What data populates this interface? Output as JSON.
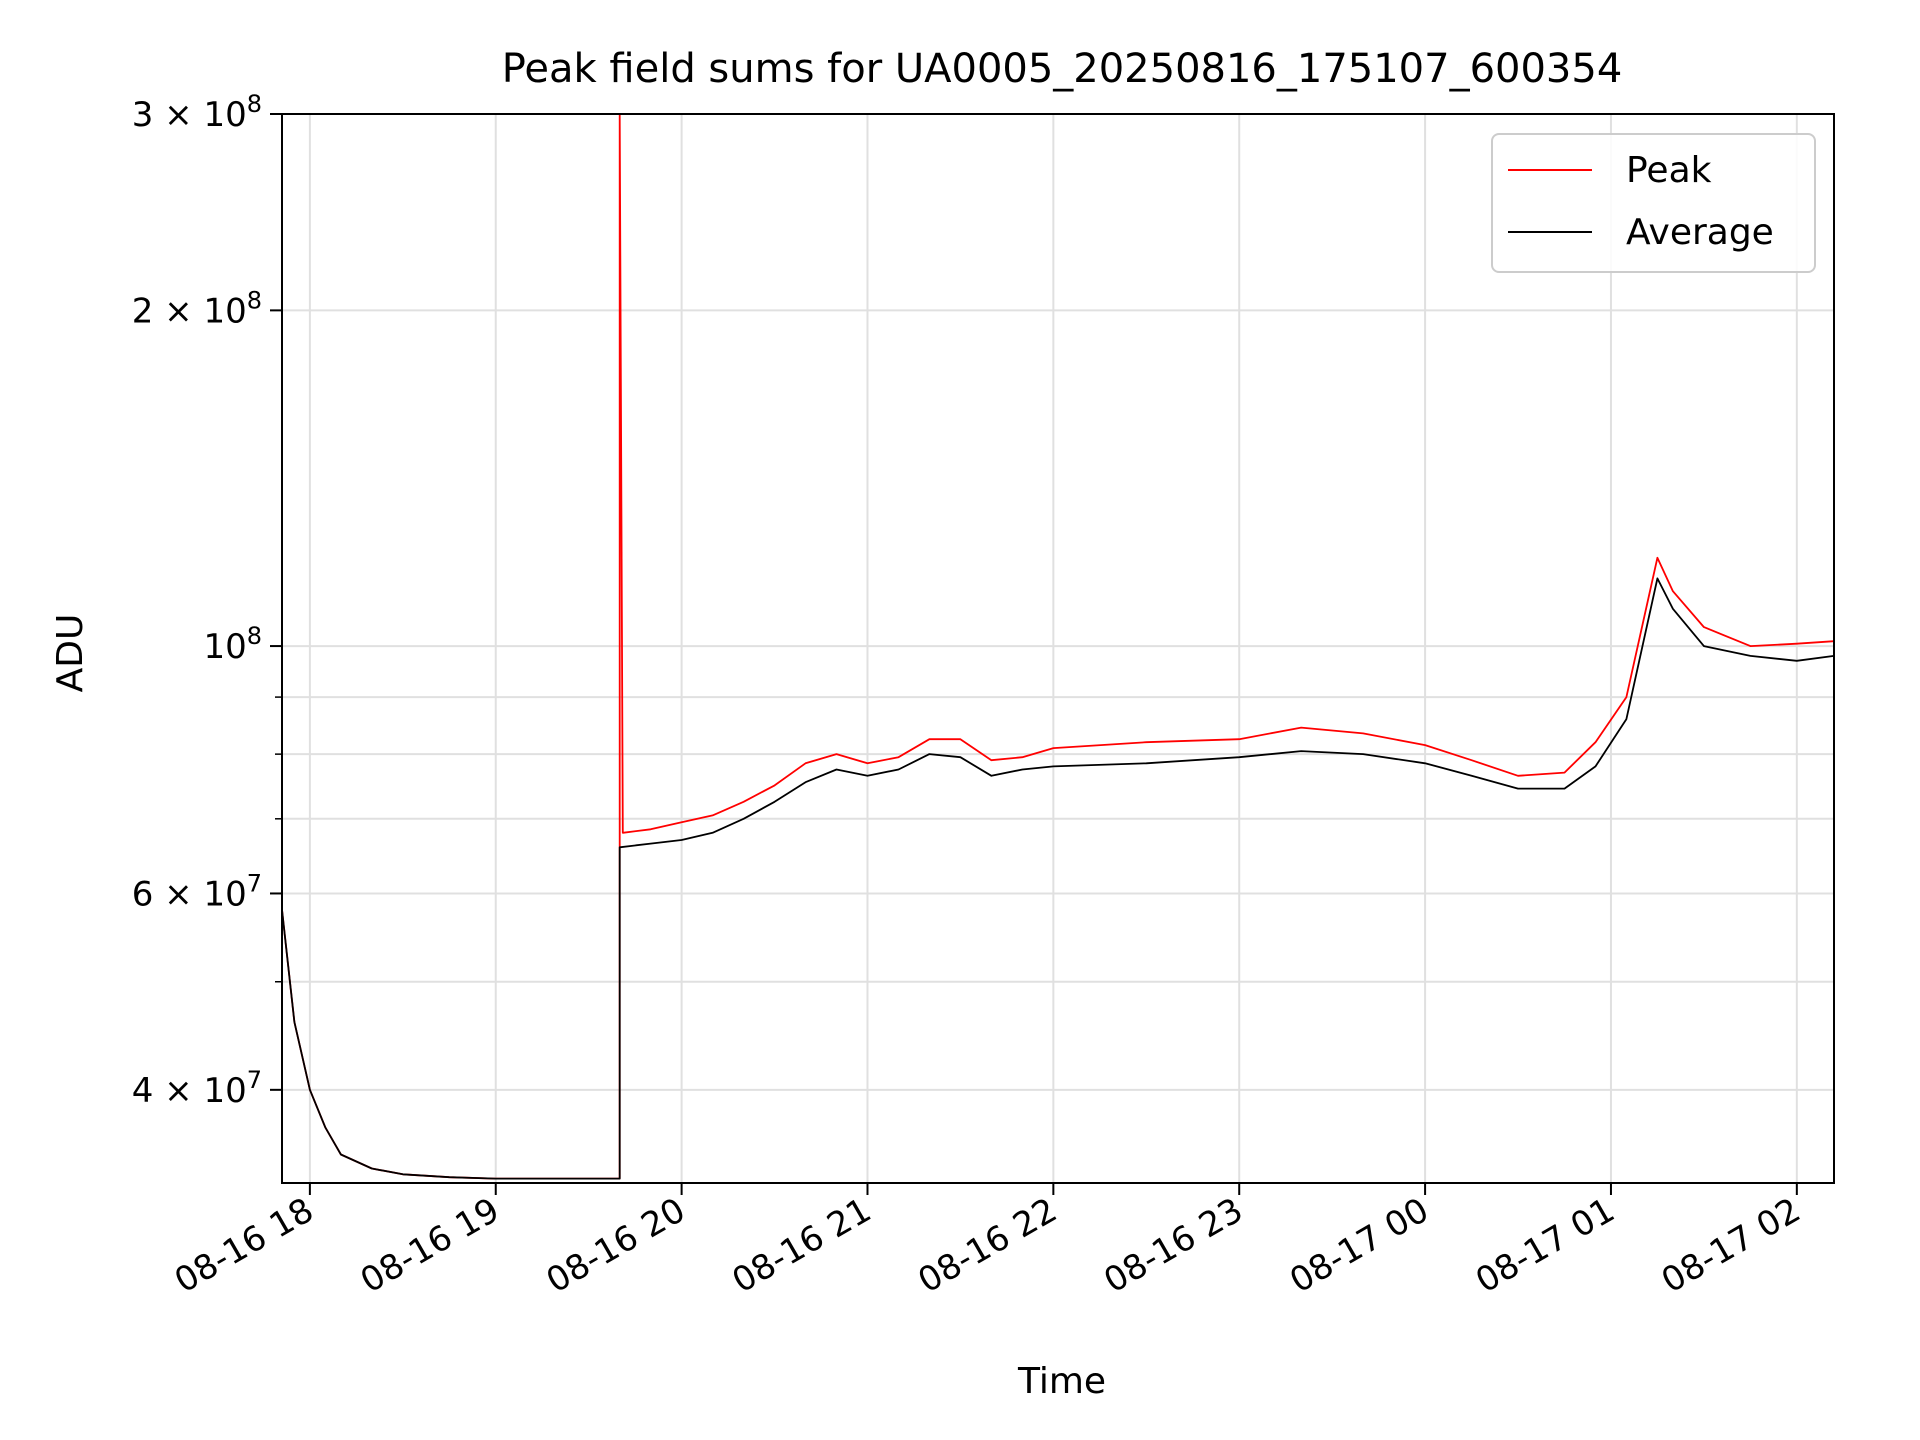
{
  "chart_data": {
    "type": "line",
    "title": "Peak field sums for UA0005_20250816_175107_600354",
    "xlabel": "Time",
    "ylabel": "ADU",
    "x_is_time": true,
    "xlim": [
      "2025-08-16 17:51",
      "2025-08-17 02:12"
    ],
    "ylim": [
      33000000,
      300000000
    ],
    "yscale": "log",
    "grid": true,
    "legend_position": "top-right",
    "x_ticks": [
      {
        "value": "2025-08-16 18:00",
        "label": "08-16 18"
      },
      {
        "value": "2025-08-16 19:00",
        "label": "08-16 19"
      },
      {
        "value": "2025-08-16 20:00",
        "label": "08-16 20"
      },
      {
        "value": "2025-08-16 21:00",
        "label": "08-16 21"
      },
      {
        "value": "2025-08-16 22:00",
        "label": "08-16 22"
      },
      {
        "value": "2025-08-16 23:00",
        "label": "08-16 23"
      },
      {
        "value": "2025-08-17 00:00",
        "label": "08-17 00"
      },
      {
        "value": "2025-08-17 01:00",
        "label": "08-17 01"
      },
      {
        "value": "2025-08-17 02:00",
        "label": "08-17 02"
      }
    ],
    "y_major_ticks": [
      {
        "value": 40000000,
        "mantissa": "4",
        "exponent": "7"
      },
      {
        "value": 60000000,
        "mantissa": "6",
        "exponent": "7"
      },
      {
        "value": 100000000,
        "mantissa": "",
        "exponent": "8"
      },
      {
        "value": 200000000,
        "mantissa": "2",
        "exponent": "8"
      },
      {
        "value": 300000000,
        "mantissa": "3",
        "exponent": "8"
      }
    ],
    "y_minor_ticks": [
      50000000,
      70000000,
      80000000,
      90000000
    ],
    "series": [
      {
        "name": "Peak",
        "color": "#ff0000",
        "x": [
          "2025-08-16 17:51",
          "2025-08-16 17:55",
          "2025-08-16 18:00",
          "2025-08-16 18:05",
          "2025-08-16 18:10",
          "2025-08-16 18:20",
          "2025-08-16 18:30",
          "2025-08-16 18:45",
          "2025-08-16 19:00",
          "2025-08-16 19:30",
          "2025-08-16 19:40",
          "2025-08-16 19:40",
          "2025-08-16 19:41",
          "2025-08-16 19:50",
          "2025-08-16 20:00",
          "2025-08-16 20:10",
          "2025-08-16 20:20",
          "2025-08-16 20:30",
          "2025-08-16 20:40",
          "2025-08-16 20:50",
          "2025-08-16 21:00",
          "2025-08-16 21:10",
          "2025-08-16 21:20",
          "2025-08-16 21:30",
          "2025-08-16 21:40",
          "2025-08-16 21:50",
          "2025-08-16 22:00",
          "2025-08-16 22:30",
          "2025-08-16 23:00",
          "2025-08-16 23:20",
          "2025-08-16 23:40",
          "2025-08-17 00:00",
          "2025-08-17 00:15",
          "2025-08-17 00:30",
          "2025-08-17 00:45",
          "2025-08-17 00:55",
          "2025-08-17 01:05",
          "2025-08-17 01:15",
          "2025-08-17 01:20",
          "2025-08-17 01:30",
          "2025-08-17 01:45",
          "2025-08-17 02:00",
          "2025-08-17 02:12"
        ],
        "y": [
          58000000,
          46000000,
          40000000,
          37000000,
          35000000,
          34000000,
          33600000,
          33400000,
          33300000,
          33300000,
          33300000,
          300000000,
          68000000,
          68500000,
          69500000,
          70500000,
          72500000,
          75000000,
          78500000,
          80000000,
          78500000,
          79500000,
          82500000,
          82500000,
          79000000,
          79500000,
          81000000,
          82000000,
          82500000,
          84500000,
          83500000,
          81500000,
          79000000,
          76500000,
          77000000,
          82000000,
          90000000,
          120000000,
          112000000,
          104000000,
          100000000,
          100500000,
          101000000
        ]
      },
      {
        "name": "Average",
        "color": "#000000",
        "x": [
          "2025-08-16 17:51",
          "2025-08-16 17:55",
          "2025-08-16 18:00",
          "2025-08-16 18:05",
          "2025-08-16 18:10",
          "2025-08-16 18:20",
          "2025-08-16 18:30",
          "2025-08-16 18:45",
          "2025-08-16 19:00",
          "2025-08-16 19:30",
          "2025-08-16 19:40",
          "2025-08-16 19:40",
          "2025-08-16 19:50",
          "2025-08-16 20:00",
          "2025-08-16 20:10",
          "2025-08-16 20:20",
          "2025-08-16 20:30",
          "2025-08-16 20:40",
          "2025-08-16 20:50",
          "2025-08-16 21:00",
          "2025-08-16 21:10",
          "2025-08-16 21:20",
          "2025-08-16 21:30",
          "2025-08-16 21:40",
          "2025-08-16 21:50",
          "2025-08-16 22:00",
          "2025-08-16 22:30",
          "2025-08-16 23:00",
          "2025-08-16 23:20",
          "2025-08-16 23:40",
          "2025-08-17 00:00",
          "2025-08-17 00:15",
          "2025-08-17 00:30",
          "2025-08-17 00:45",
          "2025-08-17 00:55",
          "2025-08-17 01:05",
          "2025-08-17 01:15",
          "2025-08-17 01:20",
          "2025-08-17 01:30",
          "2025-08-17 01:45",
          "2025-08-17 02:00",
          "2025-08-17 02:12"
        ],
        "y": [
          58000000,
          46000000,
          40000000,
          37000000,
          35000000,
          34000000,
          33600000,
          33400000,
          33300000,
          33300000,
          33300000,
          66000000,
          66500000,
          67000000,
          68000000,
          70000000,
          72500000,
          75500000,
          77500000,
          76500000,
          77500000,
          80000000,
          79500000,
          76500000,
          77500000,
          78000000,
          78500000,
          79500000,
          80500000,
          80000000,
          78500000,
          76500000,
          74500000,
          74500000,
          78000000,
          86000000,
          115000000,
          108000000,
          100000000,
          98000000,
          97000000,
          98000000
        ]
      }
    ]
  }
}
